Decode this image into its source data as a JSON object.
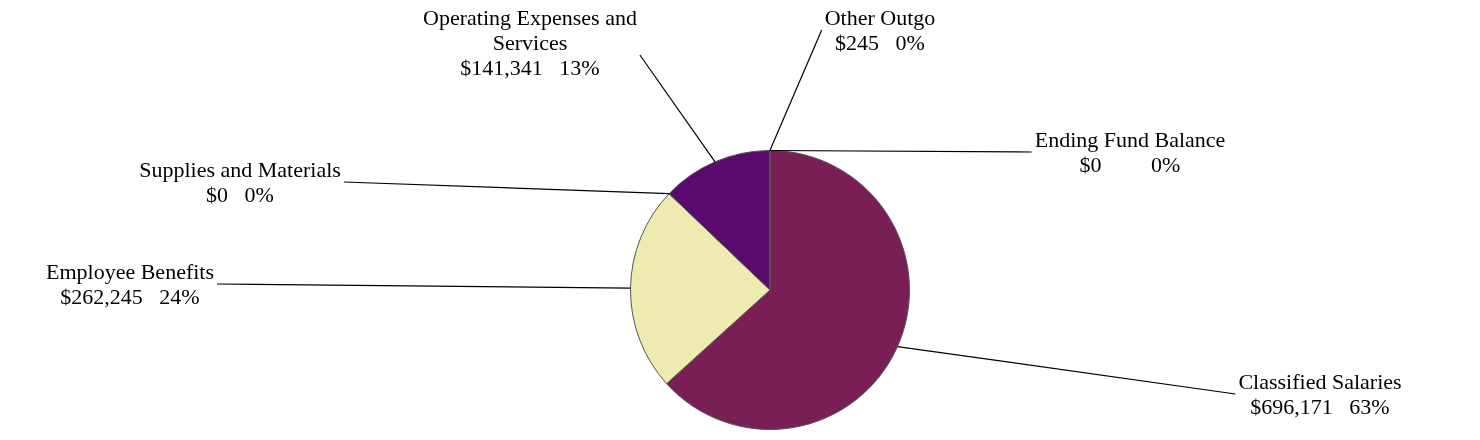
{
  "chart_data": {
    "type": "pie",
    "categories": [
      "Classified Salaries",
      "Employee Benefits",
      "Supplies and Materials",
      "Operating Expenses and Services",
      "Other Outgo",
      "Ending Fund Balance"
    ],
    "values": [
      696171,
      262245,
      0,
      141341,
      245,
      0
    ],
    "colors": [
      "#7a1f55",
      "#eeeab0",
      "#c8c8a0",
      "#5a0a6e",
      "#3a3a8a",
      "#8080c0"
    ],
    "value_labels": [
      "$696,171   63%",
      "$262,245   24%",
      "$0   0%",
      "$141,341   13%",
      "$245   0%",
      "$0         0%"
    ],
    "legend": false
  }
}
